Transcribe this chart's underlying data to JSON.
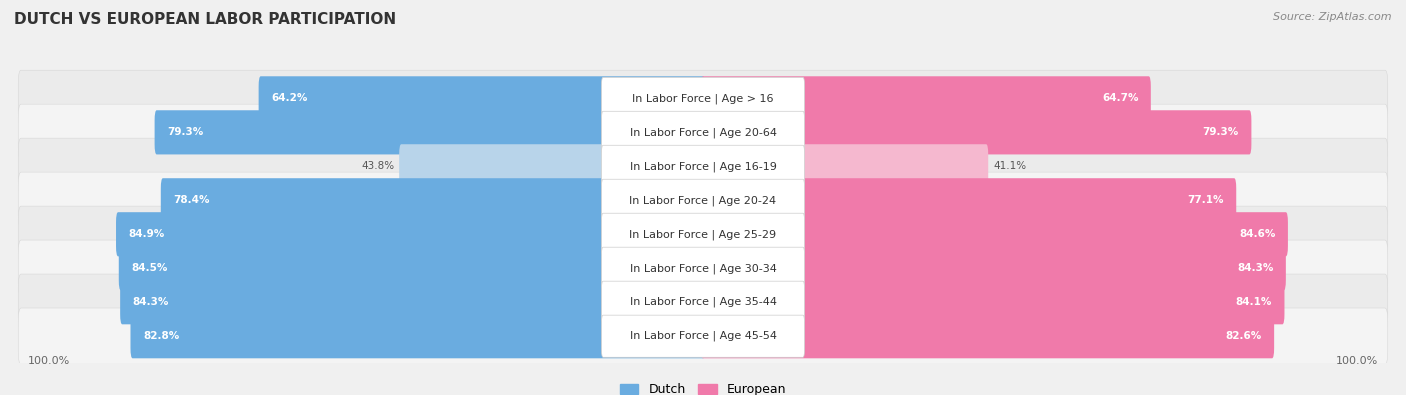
{
  "title": "DUTCH VS EUROPEAN LABOR PARTICIPATION",
  "source": "Source: ZipAtlas.com",
  "categories": [
    "In Labor Force | Age > 16",
    "In Labor Force | Age 20-64",
    "In Labor Force | Age 16-19",
    "In Labor Force | Age 20-24",
    "In Labor Force | Age 25-29",
    "In Labor Force | Age 30-34",
    "In Labor Force | Age 35-44",
    "In Labor Force | Age 45-54"
  ],
  "dutch_values": [
    64.2,
    79.3,
    43.8,
    78.4,
    84.9,
    84.5,
    84.3,
    82.8
  ],
  "european_values": [
    64.7,
    79.3,
    41.1,
    77.1,
    84.6,
    84.3,
    84.1,
    82.6
  ],
  "dutch_color": "#6aace0",
  "dutch_color_light": "#b8d4ea",
  "european_color": "#f07aaa",
  "european_color_light": "#f5b8cf",
  "background_color": "#f0f0f0",
  "row_bg_even": "#e8e8e8",
  "row_bg_odd": "#f2f2f2",
  "row_inner_bg": "#f9f9f9",
  "title_fontsize": 11,
  "source_fontsize": 8,
  "label_fontsize": 8,
  "value_fontsize": 7.5
}
